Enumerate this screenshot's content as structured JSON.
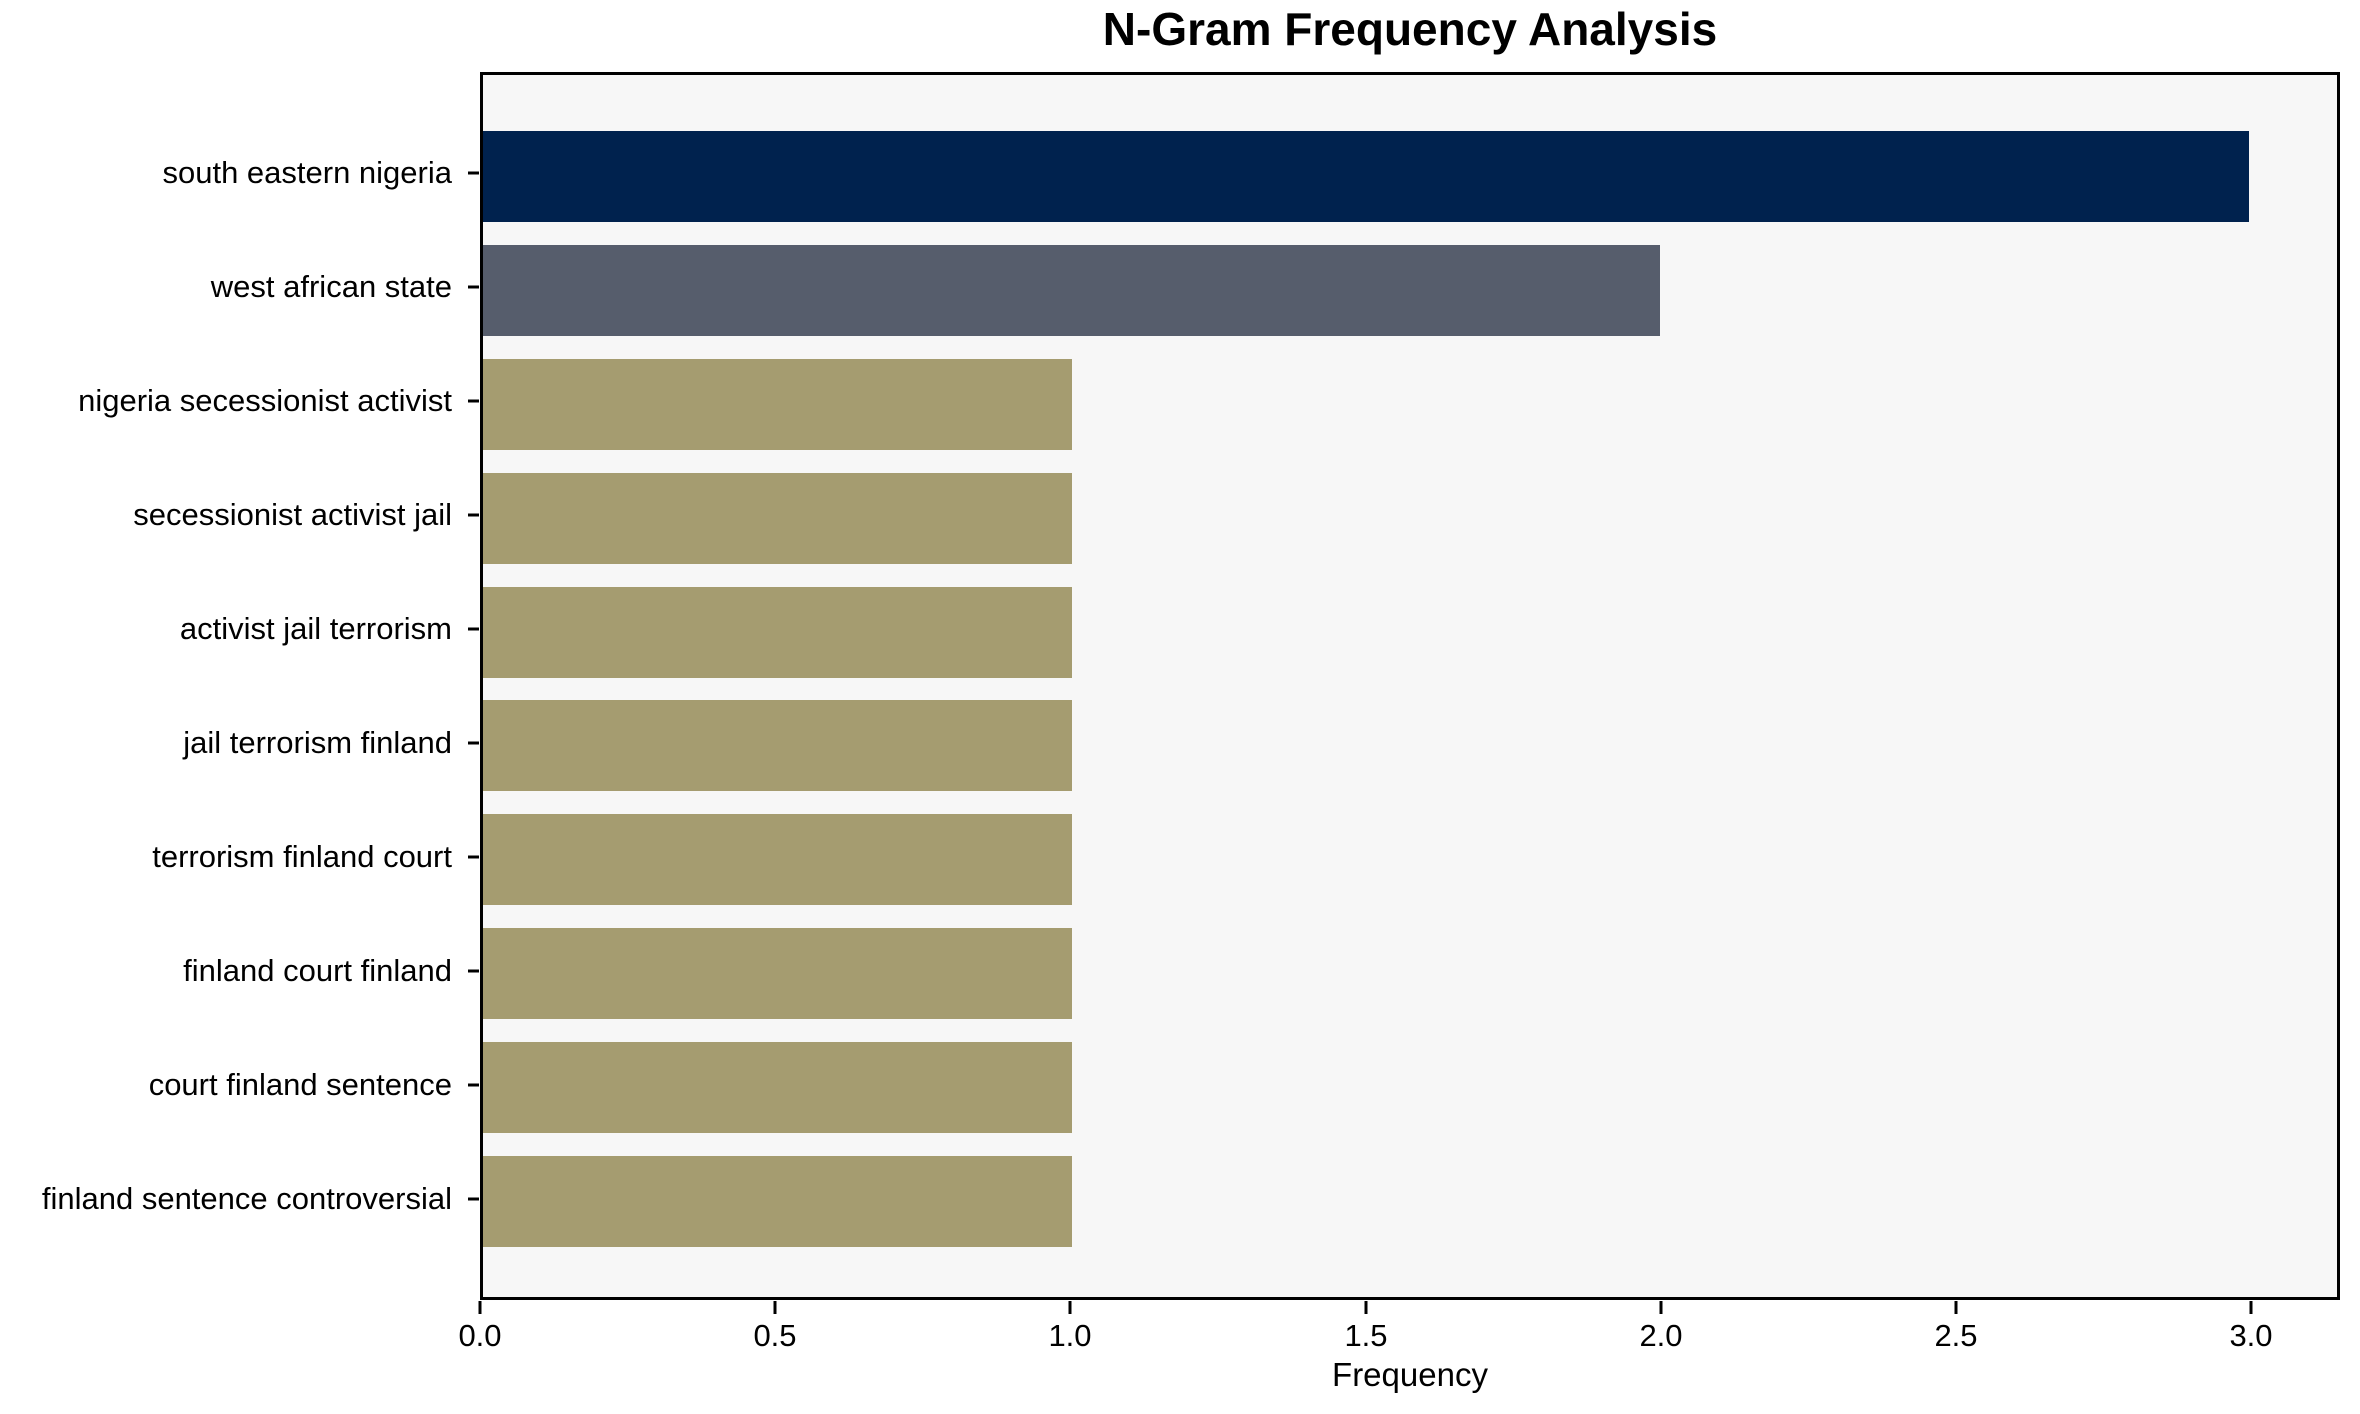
{
  "chart_data": {
    "type": "bar",
    "orientation": "horizontal",
    "title": "N-Gram Frequency Analysis",
    "xlabel": "Frequency",
    "ylabel": "",
    "categories": [
      "south eastern nigeria",
      "west african state",
      "nigeria secessionist activist",
      "secessionist activist jail",
      "activist jail terrorism",
      "jail terrorism finland",
      "terrorism finland court",
      "finland court finland",
      "court finland sentence",
      "finland sentence controversial"
    ],
    "values": [
      3,
      2,
      1,
      1,
      1,
      1,
      1,
      1,
      1,
      1
    ],
    "bar_colors": [
      "#00224e",
      "#565d6c",
      "#a59c70",
      "#a59c70",
      "#a59c70",
      "#a59c70",
      "#a59c70",
      "#a59c70",
      "#a59c70",
      "#a59c70"
    ],
    "xlim": [
      0,
      3.15
    ],
    "xticks": [
      "0.0",
      "0.5",
      "1.0",
      "1.5",
      "2.0",
      "2.5",
      "3.0"
    ],
    "xtick_values": [
      0,
      0.5,
      1.0,
      1.5,
      2.0,
      2.5,
      3.0
    ],
    "grid": false,
    "legend": null,
    "bar_height_fraction": 0.8,
    "plot_bg": "#f7f7f7",
    "fig_bg": "#ffffff",
    "spine_color": "#000000"
  }
}
